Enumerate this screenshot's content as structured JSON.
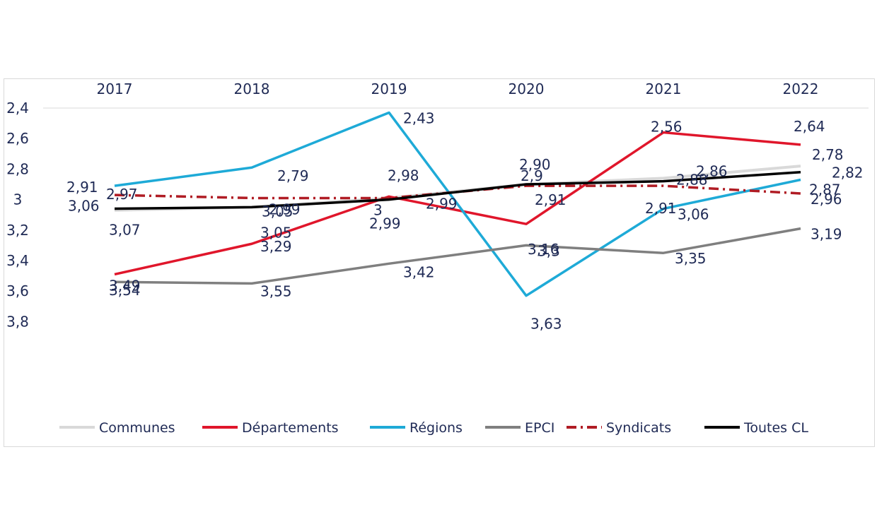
{
  "chart_data": {
    "type": "line",
    "title": "",
    "xlabel": "",
    "ylabel": "",
    "y_inverted": true,
    "ylim": [
      2.4,
      3.8
    ],
    "yticks": [
      "2,4",
      "2,6",
      "2,8",
      "3",
      "3,2",
      "3,4",
      "3,6",
      "3,8"
    ],
    "x": [
      "2017",
      "2018",
      "2019",
      "2020",
      "2021",
      "2022"
    ],
    "grid": false,
    "legend_position": "bottom",
    "series": [
      {
        "name": "Communes",
        "color": "#d9d9d9",
        "dash": "solid",
        "values": [
          3.07,
          3.05,
          2.99,
          2.9,
          2.86,
          2.78
        ],
        "labels": [
          "3,07",
          "3,05",
          "2,99",
          "2,90",
          "2,86",
          "2,78"
        ]
      },
      {
        "name": "Départements",
        "color": "#e0162b",
        "dash": "solid",
        "values": [
          3.49,
          3.29,
          2.98,
          3.16,
          2.56,
          2.64
        ],
        "labels": [
          "3,49",
          "3,29",
          "2,98",
          "3,16",
          "2,56",
          "2,64"
        ]
      },
      {
        "name": "Régions",
        "color": "#1eaad7",
        "dash": "solid",
        "values": [
          2.91,
          2.79,
          2.43,
          3.63,
          3.06,
          2.87
        ],
        "labels": [
          "2,91",
          "2,79",
          "2,43",
          "3,63",
          "3,06",
          "2,87"
        ]
      },
      {
        "name": "EPCI",
        "color": "#7f7f7f",
        "dash": "solid",
        "values": [
          3.54,
          3.55,
          3.42,
          3.3,
          3.35,
          3.19
        ],
        "labels": [
          "3,54",
          "3,55",
          "3,42",
          "3,3",
          "3,35",
          "3,19"
        ]
      },
      {
        "name": "Syndicats",
        "color": "#b01c24",
        "dash": "dashdot",
        "values": [
          2.97,
          2.99,
          2.99,
          2.91,
          2.91,
          2.96
        ],
        "labels": [
          "2,97",
          "2,99",
          "2,99",
          "2,91",
          "2,91",
          "2,96"
        ]
      },
      {
        "name": "Toutes CL",
        "color": "#000000",
        "dash": "solid",
        "values": [
          3.06,
          3.05,
          3.0,
          2.9,
          2.88,
          2.82
        ],
        "labels": [
          "3,06",
          "3,05",
          "3",
          "2,9",
          "2,88",
          "2,82"
        ]
      }
    ]
  }
}
